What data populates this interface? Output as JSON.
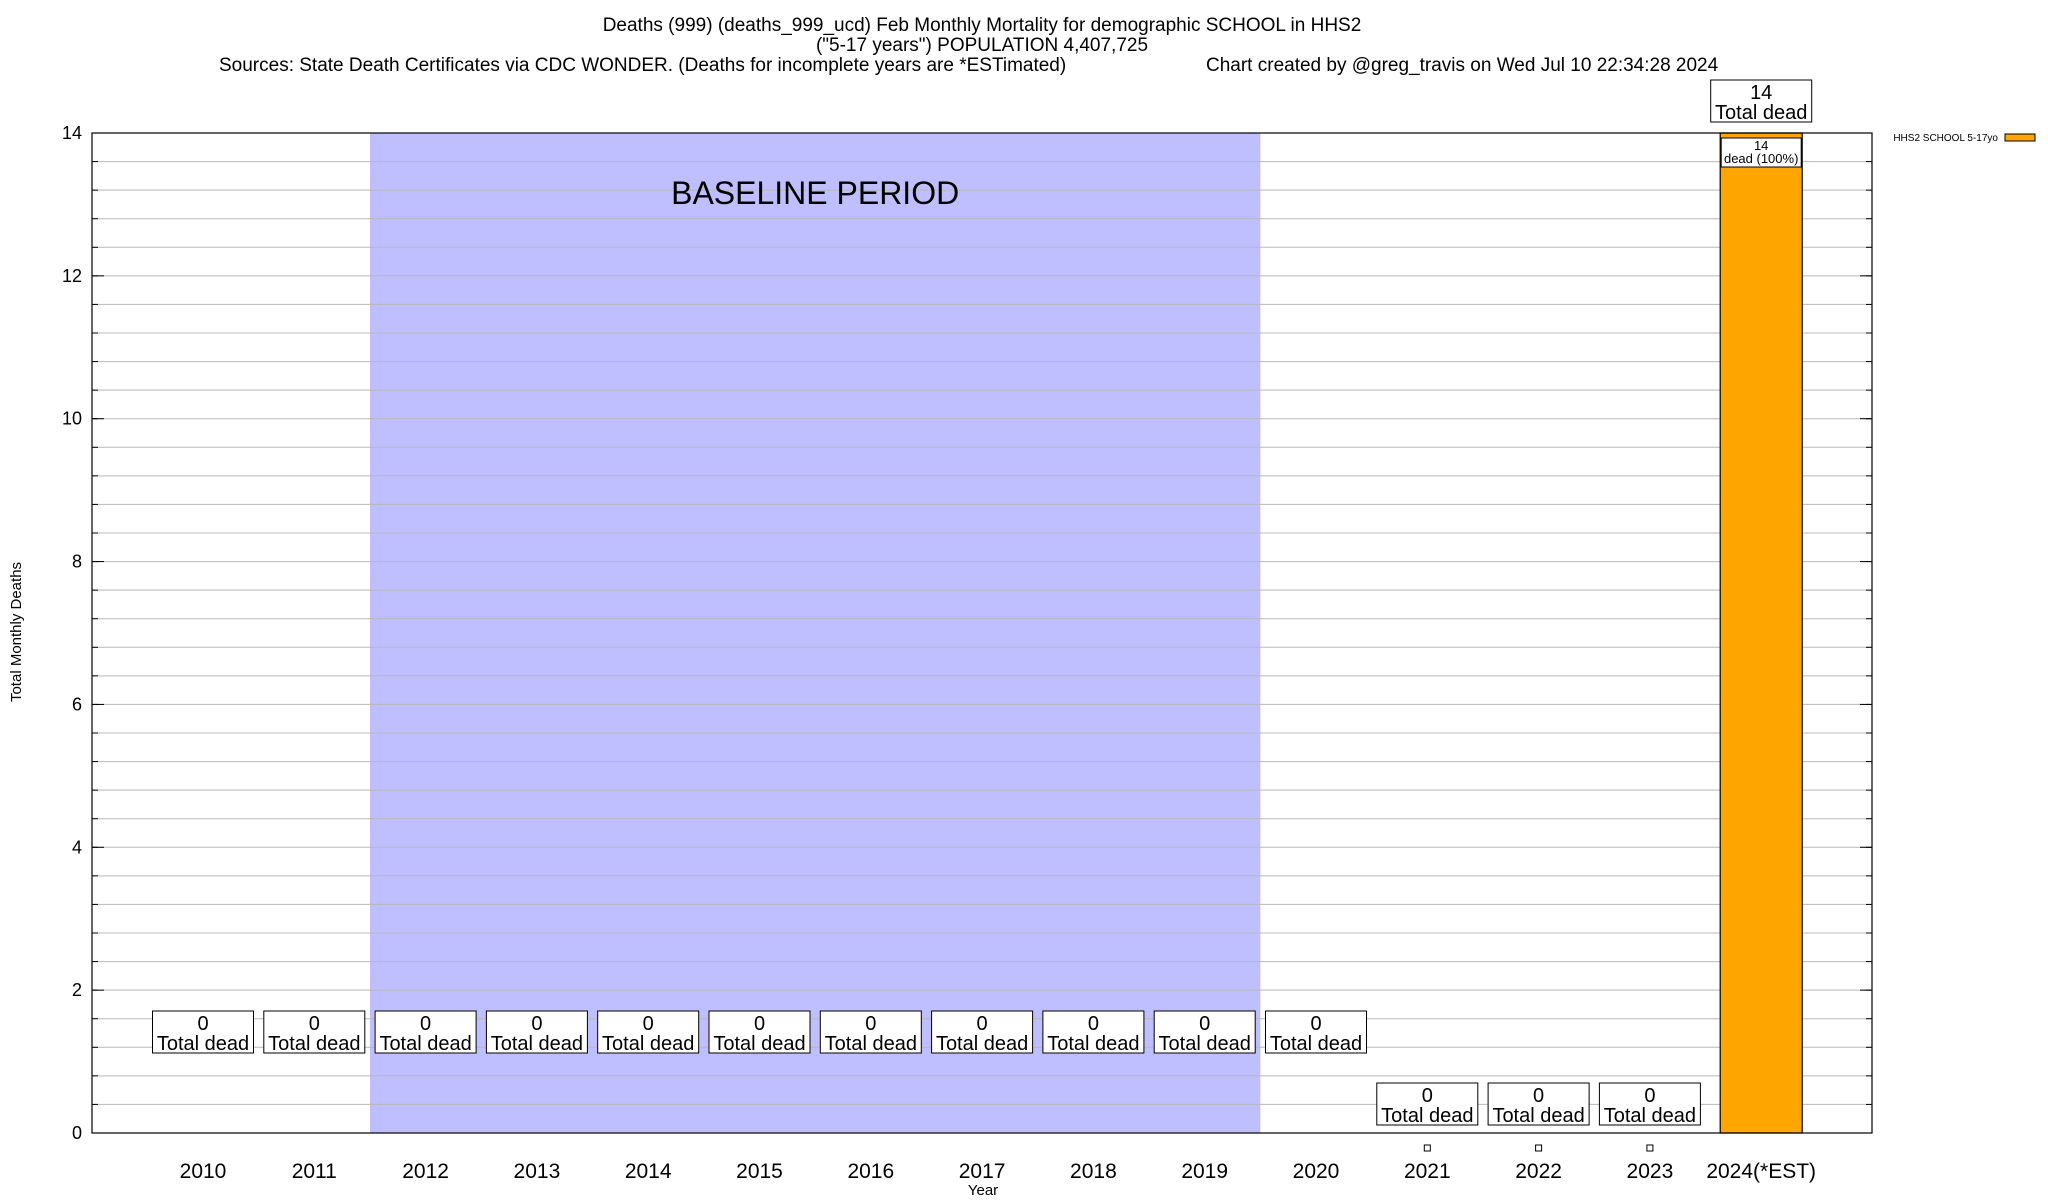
{
  "chart_data": {
    "type": "bar",
    "title_lines": [
      "Deaths (999) (deaths_999_ucd) Feb Monthly Mortality for demographic SCHOOL in HHS2",
      "(\"5-17 years\") POPULATION 4,407,725"
    ],
    "source_line": "Sources: State Death Certificates via CDC WONDER. (Deaths for incomplete years are *ESTimated)",
    "credit_line": "Chart created by @greg_travis on Wed Jul 10 22:34:28 2024",
    "xlabel": "Year",
    "ylabel": "Total Monthly Deaths",
    "ylim": [
      0,
      14
    ],
    "y_major_ticks": [
      0,
      2,
      4,
      6,
      8,
      10,
      12,
      14
    ],
    "y_minor_step": 0.4,
    "categories": [
      "2010",
      "2011",
      "2012",
      "2013",
      "2014",
      "2015",
      "2016",
      "2017",
      "2018",
      "2019",
      "2020",
      "2021",
      "2022",
      "2023",
      "2024(*EST)"
    ],
    "series": [
      {
        "name": "HHS2 SCHOOL 5-17yo",
        "color": "#FFA500",
        "values": [
          0,
          0,
          0,
          0,
          0,
          0,
          0,
          0,
          0,
          0,
          0,
          0,
          0,
          0,
          14
        ]
      }
    ],
    "total_labels": [
      {
        "value": "0",
        "text": "Total dead"
      },
      {
        "value": "0",
        "text": "Total dead"
      },
      {
        "value": "0",
        "text": "Total dead"
      },
      {
        "value": "0",
        "text": "Total dead"
      },
      {
        "value": "0",
        "text": "Total dead"
      },
      {
        "value": "0",
        "text": "Total dead"
      },
      {
        "value": "0",
        "text": "Total dead"
      },
      {
        "value": "0",
        "text": "Total dead"
      },
      {
        "value": "0",
        "text": "Total dead"
      },
      {
        "value": "0",
        "text": "Total dead"
      },
      {
        "value": "0",
        "text": "Total dead"
      },
      {
        "value": "0",
        "text": "Total dead"
      },
      {
        "value": "0",
        "text": "Total dead"
      },
      {
        "value": "0",
        "text": "Total dead"
      },
      {
        "value": "14",
        "text": "Total dead"
      }
    ],
    "segment_label": {
      "category": "2024(*EST)",
      "value": "14",
      "text": "dead (100%)"
    },
    "baseline_period": {
      "label": "BASELINE PERIOD",
      "from": "2012",
      "to": "2019",
      "color": "#BFBFFF"
    },
    "legend": {
      "placement": "top-right outside plot"
    },
    "grid": true
  }
}
